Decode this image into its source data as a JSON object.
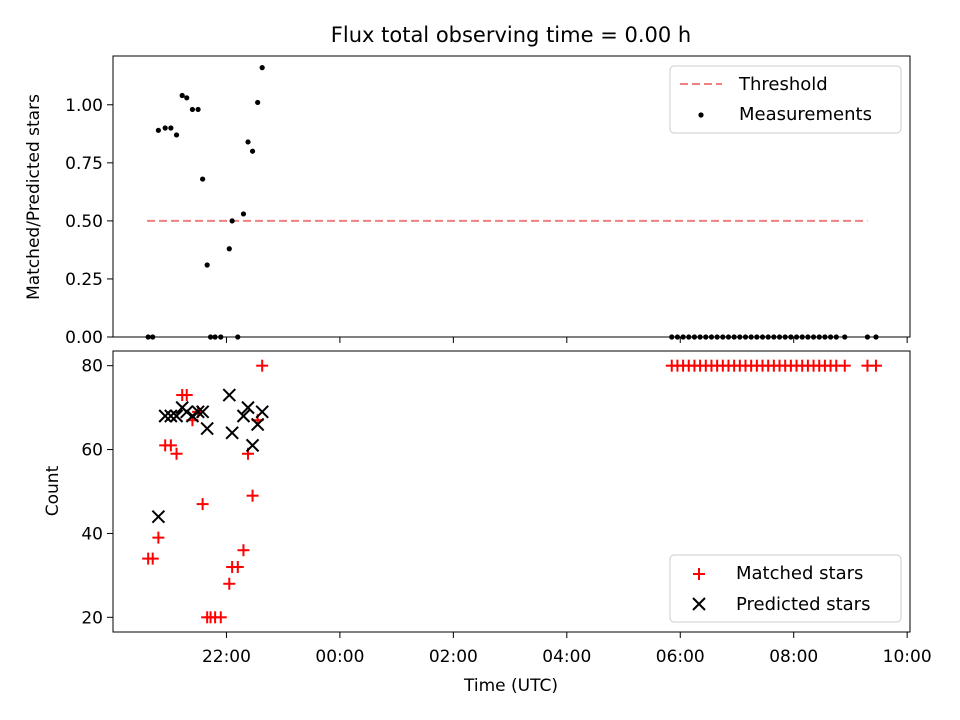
{
  "chart_data": {
    "title": "Flux total observing time = 0.00 h",
    "x_axis": {
      "label": "Time (UTC)",
      "tick_labels": [
        "22:00",
        "00:00",
        "02:00",
        "04:00",
        "06:00",
        "08:00",
        "10:00"
      ],
      "tick_hours": [
        22,
        24,
        26,
        28,
        30,
        32,
        34
      ],
      "range_hours": [
        20.0,
        34.05
      ]
    },
    "panels": [
      {
        "type": "scatter",
        "ylabel": "Matched/Predicted stars",
        "ylim": [
          0,
          1.21
        ],
        "yticks": [
          0,
          0.25,
          0.5,
          0.75,
          1.0
        ],
        "ytick_labels": [
          "0.00",
          "0.25",
          "0.50",
          "0.75",
          "1.00"
        ],
        "legend": {
          "placement": "top-right",
          "entries": [
            "Threshold",
            "Measurements"
          ]
        },
        "threshold": {
          "name": "Threshold",
          "y": 0.5,
          "x_start": 20.6,
          "x_end": 33.3,
          "color": "#f08080"
        },
        "series": [
          {
            "name": "Measurements",
            "marker": "dot",
            "color": "#000000",
            "x": [
              20.62,
              20.7,
              20.8,
              20.92,
              21.02,
              21.12,
              21.22,
              21.3,
              21.4,
              21.5,
              21.58,
              21.66,
              21.72,
              21.8,
              21.9,
              22.05,
              22.1,
              22.2,
              22.3,
              22.38,
              22.46,
              22.55,
              22.63,
              29.85,
              29.95,
              30.05,
              30.15,
              30.25,
              30.35,
              30.45,
              30.55,
              30.65,
              30.75,
              30.85,
              30.95,
              31.05,
              31.15,
              31.25,
              31.35,
              31.45,
              31.55,
              31.65,
              31.75,
              31.85,
              31.95,
              32.05,
              32.15,
              32.25,
              32.35,
              32.45,
              32.55,
              32.65,
              32.75,
              32.9,
              33.3,
              33.45
            ],
            "y": [
              0.0,
              0.0,
              0.89,
              0.9,
              0.9,
              0.87,
              1.04,
              1.03,
              0.98,
              0.98,
              0.68,
              0.31,
              0.0,
              0.0,
              0.0,
              0.38,
              0.5,
              0.0,
              0.53,
              0.84,
              0.8,
              1.01,
              1.16,
              0,
              0,
              0,
              0,
              0,
              0,
              0,
              0,
              0,
              0,
              0,
              0,
              0,
              0,
              0,
              0,
              0,
              0,
              0,
              0,
              0,
              0,
              0,
              0,
              0,
              0,
              0,
              0,
              0,
              0,
              0,
              0,
              0
            ]
          }
        ]
      },
      {
        "type": "scatter",
        "ylabel": "Count",
        "ylim": [
          16.5,
          83.5
        ],
        "yticks": [
          20,
          40,
          60,
          80
        ],
        "ytick_labels": [
          "20",
          "40",
          "60",
          "80"
        ],
        "legend": {
          "placement": "bottom-right",
          "entries": [
            "Matched stars",
            "Predicted stars"
          ]
        },
        "series": [
          {
            "name": "Matched stars",
            "marker": "plus",
            "color": "#ff0000",
            "x": [
              20.62,
              20.7,
              20.8,
              20.92,
              21.02,
              21.12,
              21.22,
              21.3,
              21.4,
              21.5,
              21.58,
              21.66,
              21.72,
              21.8,
              21.9,
              22.05,
              22.1,
              22.2,
              22.3,
              22.38,
              22.46,
              22.55,
              22.63,
              29.85,
              29.95,
              30.05,
              30.15,
              30.25,
              30.35,
              30.45,
              30.55,
              30.65,
              30.75,
              30.85,
              30.95,
              31.05,
              31.15,
              31.25,
              31.35,
              31.45,
              31.55,
              31.65,
              31.75,
              31.85,
              31.95,
              32.05,
              32.15,
              32.25,
              32.35,
              32.45,
              32.55,
              32.65,
              32.75,
              32.9,
              33.3,
              33.45
            ],
            "y": [
              34,
              34,
              39,
              61,
              61,
              59,
              73,
              73,
              67,
              69,
              47,
              20,
              20,
              20,
              20,
              28,
              32,
              32,
              36,
              59,
              49,
              67,
              80,
              80,
              80,
              80,
              80,
              80,
              80,
              80,
              80,
              80,
              80,
              80,
              80,
              80,
              80,
              80,
              80,
              80,
              80,
              80,
              80,
              80,
              80,
              80,
              80,
              80,
              80,
              80,
              80,
              80,
              80,
              80,
              80,
              80
            ]
          },
          {
            "name": "Predicted stars",
            "marker": "x",
            "color": "#000000",
            "x": [
              20.8,
              20.92,
              21.02,
              21.12,
              21.22,
              21.3,
              21.4,
              21.5,
              21.58,
              21.66,
              22.05,
              22.1,
              22.3,
              22.38,
              22.46,
              22.55,
              22.63
            ],
            "y": [
              44,
              68,
              68,
              68,
              70,
              69,
              68,
              69,
              69,
              65,
              73,
              64,
              68,
              70,
              61,
              66,
              69
            ]
          }
        ]
      }
    ]
  }
}
